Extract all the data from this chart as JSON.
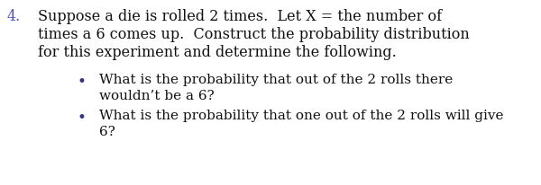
{
  "background_color": "#ffffff",
  "number_color": "#5555bb",
  "text_color": "#111111",
  "bullet_color": "#333388",
  "number": "4.",
  "main_text_line1": "Suppose a die is rolled 2 times.  Let X = the number of",
  "main_text_line2": "times a 6 comes up.  Construct the probability distribution",
  "main_text_line3": "for this experiment and determine the following.",
  "bullet1_line1": "What is the probability that out of the 2 rolls there",
  "bullet1_line2": "wouldn’t be a 6?",
  "bullet2_line1": "What is the probability that one out of the 2 rolls will give",
  "bullet2_line2": "6?",
  "font_size_main": 11.5,
  "font_size_bullet": 11.0,
  "font_family": "DejaVu Serif",
  "fig_width": 6.0,
  "fig_height": 2.06,
  "dpi": 100
}
